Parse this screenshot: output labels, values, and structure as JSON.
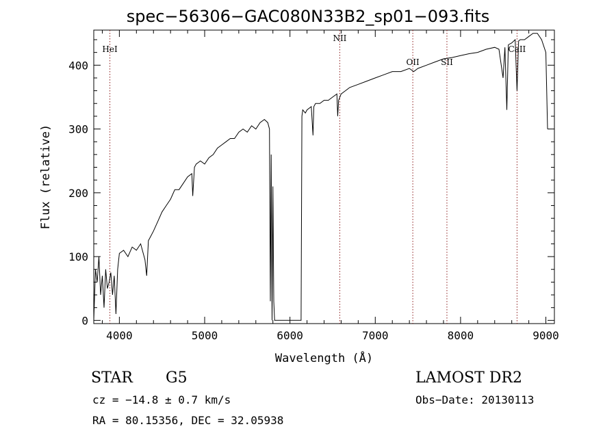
{
  "chart_data": {
    "type": "line",
    "title": "spec−56306−GAC080N33B2_sp01−093.fits",
    "xlabel": "Wavelength (Å)",
    "ylabel": "Flux (relative)",
    "xlim": [
      3700,
      9100
    ],
    "ylim": [
      -5,
      455
    ],
    "xticks": [
      4000,
      5000,
      6000,
      7000,
      8000,
      9000
    ],
    "yticks": [
      0,
      100,
      200,
      300,
      400
    ],
    "grid": false,
    "series": [
      {
        "color": "#000000",
        "x": [
          3700,
          3720,
          3740,
          3760,
          3780,
          3800,
          3820,
          3840,
          3860,
          3880,
          3900,
          3920,
          3940,
          3960,
          3980,
          4000,
          4050,
          4100,
          4150,
          4200,
          4250,
          4300,
          4320,
          4340,
          4360,
          4400,
          4450,
          4500,
          4550,
          4600,
          4650,
          4700,
          4750,
          4800,
          4850,
          4860,
          4880,
          4900,
          4950,
          5000,
          5050,
          5100,
          5150,
          5200,
          5250,
          5300,
          5350,
          5400,
          5450,
          5500,
          5550,
          5600,
          5650,
          5700,
          5740,
          5760,
          5770,
          5780,
          5790,
          5800,
          5810,
          5820,
          5830,
          5840,
          6120,
          6130,
          6140,
          6150,
          6180,
          6200,
          6250,
          6270,
          6280,
          6300,
          6350,
          6400,
          6450,
          6500,
          6550,
          6560,
          6570,
          6600,
          6650,
          6700,
          6800,
          6900,
          7000,
          7100,
          7200,
          7300,
          7400,
          7450,
          7500,
          7600,
          7700,
          7800,
          7900,
          8000,
          8100,
          8200,
          8300,
          8400,
          8450,
          8498,
          8520,
          8542,
          8560,
          8600,
          8640,
          8662,
          8680,
          8700,
          8750,
          8800,
          8850,
          8900,
          8950,
          9000,
          9020
        ],
        "y": [
          0,
          80,
          60,
          100,
          40,
          70,
          20,
          80,
          50,
          60,
          75,
          40,
          70,
          10,
          80,
          105,
          110,
          100,
          115,
          110,
          120,
          95,
          70,
          125,
          130,
          140,
          155,
          170,
          180,
          190,
          205,
          205,
          215,
          225,
          230,
          195,
          240,
          245,
          250,
          245,
          255,
          260,
          270,
          275,
          280,
          285,
          285,
          295,
          300,
          295,
          305,
          300,
          310,
          315,
          310,
          300,
          30,
          260,
          0,
          210,
          30,
          0,
          0,
          0,
          0,
          0,
          320,
          330,
          325,
          330,
          335,
          290,
          335,
          340,
          340,
          345,
          345,
          350,
          355,
          320,
          345,
          355,
          360,
          365,
          370,
          375,
          380,
          385,
          390,
          390,
          395,
          390,
          395,
          400,
          405,
          410,
          412,
          415,
          418,
          420,
          425,
          428,
          425,
          380,
          428,
          330,
          432,
          435,
          440,
          360,
          438,
          440,
          440,
          445,
          450,
          450,
          440,
          420,
          300
        ]
      }
    ],
    "line_markers": [
      {
        "name": "HeI",
        "wavelength": 3889
      },
      {
        "name": "NII",
        "wavelength": 6584
      },
      {
        "name": "OII",
        "wavelength": 7440
      },
      {
        "name": "SII",
        "wavelength": 7840
      },
      {
        "name": "CaII",
        "wavelength": 8662
      }
    ],
    "marker_color": "#8b1a1a"
  },
  "info": {
    "obj_class": "STAR",
    "obj_type": "G5",
    "survey": "LAMOST DR2",
    "cz": "cz = −14.8 ± 0.7 km/s",
    "obs_date": "Obs−Date: 20130113",
    "radec": "RA =  80.15356, DEC =  32.05938"
  }
}
